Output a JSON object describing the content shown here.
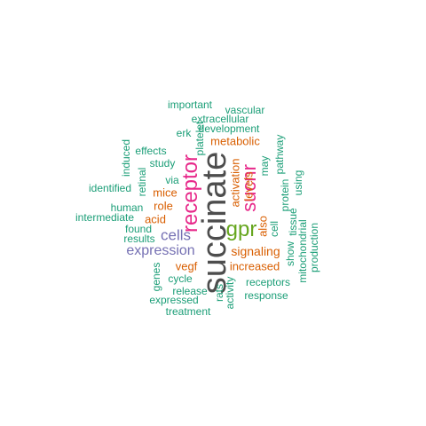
{
  "palette": {
    "teal": "#1b9e77",
    "orange": "#d95f02",
    "purple": "#7570b3",
    "magenta": "#e7298a",
    "green": "#66a61e",
    "dark": "#4d4d4d"
  },
  "words": [
    {
      "text": "succinate",
      "color": "dark",
      "vertical": true
    },
    {
      "text": "receptor",
      "color": "magenta",
      "vertical": true
    },
    {
      "text": "sucnr",
      "color": "magenta",
      "vertical": true
    },
    {
      "text": "gpr",
      "color": "green",
      "vertical": false
    },
    {
      "text": "cells",
      "color": "purple",
      "vertical": false
    },
    {
      "text": "expression",
      "color": "purple",
      "vertical": false
    },
    {
      "text": "signaling",
      "color": "orange",
      "vertical": false
    },
    {
      "text": "increased",
      "color": "orange",
      "vertical": false
    },
    {
      "text": "activation",
      "color": "orange",
      "vertical": true
    },
    {
      "text": "metabolic",
      "color": "orange",
      "vertical": false
    },
    {
      "text": "mice",
      "color": "orange",
      "vertical": false
    },
    {
      "text": "role",
      "color": "orange",
      "vertical": false
    },
    {
      "text": "acid",
      "color": "orange",
      "vertical": false
    },
    {
      "text": "vegf",
      "color": "orange",
      "vertical": false
    },
    {
      "text": "levels",
      "color": "orange",
      "vertical": true
    },
    {
      "text": "also",
      "color": "orange",
      "vertical": true
    },
    {
      "text": "important",
      "color": "teal",
      "vertical": false
    },
    {
      "text": "vascular",
      "color": "teal",
      "vertical": false
    },
    {
      "text": "extracellular",
      "color": "teal",
      "vertical": false
    },
    {
      "text": "development",
      "color": "teal",
      "vertical": false
    },
    {
      "text": "erk",
      "color": "teal",
      "vertical": false
    },
    {
      "text": "platelet",
      "color": "teal",
      "vertical": true
    },
    {
      "text": "induced",
      "color": "teal",
      "vertical": true
    },
    {
      "text": "effects",
      "color": "teal",
      "vertical": false
    },
    {
      "text": "study",
      "color": "teal",
      "vertical": false
    },
    {
      "text": "retinal",
      "color": "teal",
      "vertical": true
    },
    {
      "text": "identified",
      "color": "teal",
      "vertical": false
    },
    {
      "text": "via",
      "color": "teal",
      "vertical": false
    },
    {
      "text": "human",
      "color": "teal",
      "vertical": false
    },
    {
      "text": "intermediate",
      "color": "teal",
      "vertical": false
    },
    {
      "text": "found",
      "color": "teal",
      "vertical": false
    },
    {
      "text": "results",
      "color": "teal",
      "vertical": false
    },
    {
      "text": "genes",
      "color": "teal",
      "vertical": true
    },
    {
      "text": "cycle",
      "color": "teal",
      "vertical": false
    },
    {
      "text": "release",
      "color": "teal",
      "vertical": false
    },
    {
      "text": "expressed",
      "color": "teal",
      "vertical": false
    },
    {
      "text": "treatment",
      "color": "teal",
      "vertical": false
    },
    {
      "text": "rats",
      "color": "teal",
      "vertical": true
    },
    {
      "text": "activity",
      "color": "teal",
      "vertical": true
    },
    {
      "text": "receptors",
      "color": "teal",
      "vertical": false
    },
    {
      "text": "response",
      "color": "teal",
      "vertical": false
    },
    {
      "text": "may",
      "color": "teal",
      "vertical": true
    },
    {
      "text": "cell",
      "color": "teal",
      "vertical": true
    },
    {
      "text": "pathway",
      "color": "teal",
      "vertical": true
    },
    {
      "text": "protein",
      "color": "teal",
      "vertical": true
    },
    {
      "text": "tissue",
      "color": "teal",
      "vertical": true
    },
    {
      "text": "show",
      "color": "teal",
      "vertical": true
    },
    {
      "text": "using",
      "color": "teal",
      "vertical": true
    },
    {
      "text": "mitochondrial",
      "color": "teal",
      "vertical": true
    },
    {
      "text": "production",
      "color": "teal",
      "vertical": true
    }
  ]
}
